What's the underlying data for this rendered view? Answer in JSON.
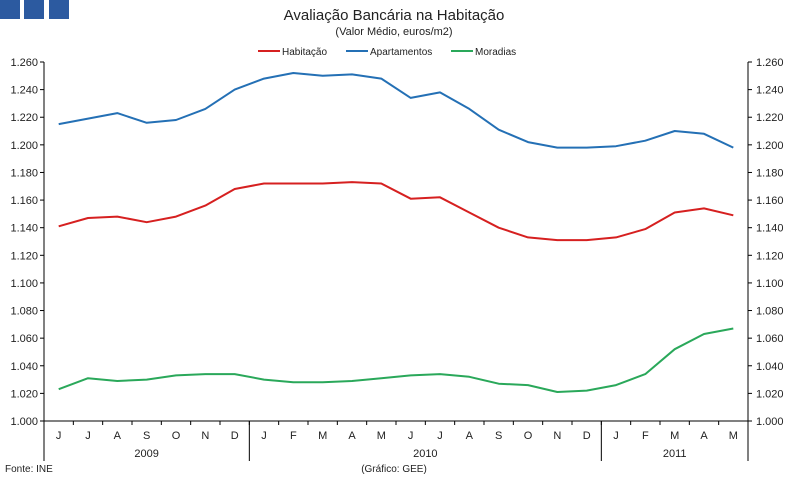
{
  "header": {
    "title": "Avaliação Bancária na Habitação",
    "subtitle": "(Valor Médio, euros/m2)"
  },
  "footer": {
    "source": "Fonte: INE",
    "credit": "(Gráfico: GEE)"
  },
  "colors": {
    "habitacao": "#d62020",
    "apartamentos": "#2470b5",
    "moradias": "#2aa85a",
    "logo": "#2c5aa0"
  },
  "chart_data": {
    "type": "line",
    "title": "Avaliação Bancária na Habitação",
    "subtitle": "(Valor Médio, euros/m2)",
    "xlabel": "",
    "ylabel": "",
    "ylim": [
      1000,
      1260
    ],
    "yticks": [
      1000,
      1020,
      1040,
      1060,
      1080,
      1100,
      1120,
      1140,
      1160,
      1180,
      1200,
      1220,
      1240,
      1260
    ],
    "ytick_labels": [
      "1.000",
      "1.020",
      "1.040",
      "1.060",
      "1.080",
      "1.100",
      "1.120",
      "1.140",
      "1.160",
      "1.180",
      "1.200",
      "1.220",
      "1.240",
      "1.260"
    ],
    "grid": false,
    "legend_position": "top-center",
    "categories": [
      "J",
      "J",
      "A",
      "S",
      "O",
      "N",
      "D",
      "J",
      "F",
      "M",
      "A",
      "M",
      "J",
      "J",
      "A",
      "S",
      "O",
      "N",
      "D",
      "J",
      "F",
      "M",
      "A",
      "M"
    ],
    "year_groups": [
      {
        "label": "2009",
        "start": 0,
        "end": 6
      },
      {
        "label": "2010",
        "start": 7,
        "end": 18
      },
      {
        "label": "2011",
        "start": 19,
        "end": 23
      }
    ],
    "series": [
      {
        "name": "Habitação",
        "color": "#d62020",
        "values": [
          1141,
          1147,
          1148,
          1144,
          1148,
          1156,
          1168,
          1172,
          1172,
          1172,
          1173,
          1172,
          1161,
          1162,
          1151,
          1140,
          1133,
          1131,
          1131,
          1133,
          1139,
          1151,
          1154,
          1149
        ]
      },
      {
        "name": "Apartamentos",
        "color": "#2470b5",
        "values": [
          1215,
          1219,
          1223,
          1216,
          1218,
          1226,
          1240,
          1248,
          1252,
          1250,
          1251,
          1248,
          1234,
          1238,
          1226,
          1211,
          1202,
          1198,
          1198,
          1199,
          1203,
          1210,
          1208,
          1198
        ]
      },
      {
        "name": "Moradias",
        "color": "#2aa85a",
        "values": [
          1023,
          1031,
          1029,
          1030,
          1033,
          1034,
          1034,
          1030,
          1028,
          1028,
          1029,
          1031,
          1033,
          1034,
          1032,
          1027,
          1026,
          1021,
          1022,
          1026,
          1034,
          1052,
          1063,
          1067
        ]
      }
    ]
  }
}
